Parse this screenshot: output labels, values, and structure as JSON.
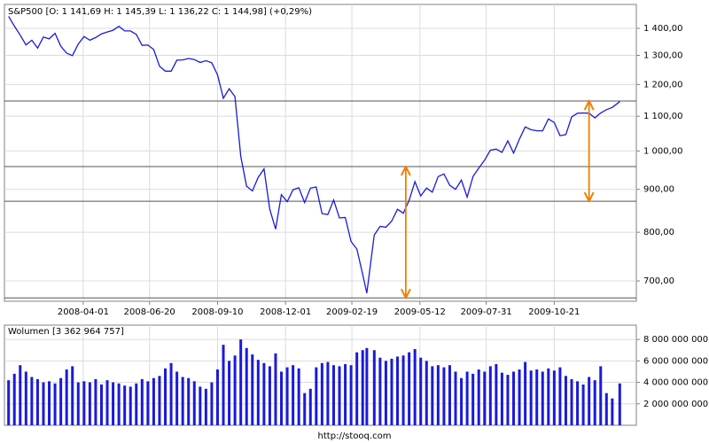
{
  "header": "S&P500 [O: 1 141,69  H: 1 145,39  L: 1 136,22  C: 1 144,98] (+0,29%)",
  "footer": "http://stooq.com",
  "chart_data": [
    {
      "type": "line",
      "log_scale": true,
      "grid": true,
      "color": "#1a1adc",
      "x": [
        "2008-01-02",
        "2008-01-09",
        "2008-01-16",
        "2008-01-23",
        "2008-01-30",
        "2008-02-06",
        "2008-02-13",
        "2008-02-20",
        "2008-02-27",
        "2008-03-05",
        "2008-03-12",
        "2008-03-19",
        "2008-03-26",
        "2008-04-02",
        "2008-04-09",
        "2008-04-16",
        "2008-04-23",
        "2008-04-30",
        "2008-05-07",
        "2008-05-14",
        "2008-05-21",
        "2008-05-28",
        "2008-06-04",
        "2008-06-11",
        "2008-06-18",
        "2008-06-25",
        "2008-07-02",
        "2008-07-09",
        "2008-07-16",
        "2008-07-23",
        "2008-07-30",
        "2008-08-06",
        "2008-08-13",
        "2008-08-20",
        "2008-08-27",
        "2008-09-03",
        "2008-09-10",
        "2008-09-17",
        "2008-09-24",
        "2008-10-01",
        "2008-10-08",
        "2008-10-15",
        "2008-10-22",
        "2008-10-29",
        "2008-11-05",
        "2008-11-12",
        "2008-11-19",
        "2008-11-26",
        "2008-12-03",
        "2008-12-10",
        "2008-12-17",
        "2008-12-24",
        "2008-12-31",
        "2009-01-07",
        "2009-01-14",
        "2009-01-21",
        "2009-01-28",
        "2009-02-04",
        "2009-02-11",
        "2009-02-18",
        "2009-02-25",
        "2009-03-04",
        "2009-03-09",
        "2009-03-18",
        "2009-03-25",
        "2009-04-01",
        "2009-04-08",
        "2009-04-15",
        "2009-04-22",
        "2009-04-29",
        "2009-05-06",
        "2009-05-13",
        "2009-05-20",
        "2009-05-27",
        "2009-06-03",
        "2009-06-10",
        "2009-06-17",
        "2009-06-24",
        "2009-07-01",
        "2009-07-08",
        "2009-07-15",
        "2009-07-22",
        "2009-07-29",
        "2009-08-05",
        "2009-08-12",
        "2009-08-19",
        "2009-08-26",
        "2009-09-02",
        "2009-09-09",
        "2009-09-16",
        "2009-09-23",
        "2009-09-30",
        "2009-10-07",
        "2009-10-14",
        "2009-10-21",
        "2009-10-28",
        "2009-11-04",
        "2009-11-11",
        "2009-11-18",
        "2009-11-25",
        "2009-12-02",
        "2009-12-09",
        "2009-12-16",
        "2009-12-23",
        "2009-12-30",
        "2010-01-08"
      ],
      "values": [
        1447,
        1409,
        1374,
        1338,
        1355,
        1326,
        1367,
        1360,
        1381,
        1333,
        1308,
        1299,
        1341,
        1369,
        1355,
        1365,
        1379,
        1386,
        1393,
        1408,
        1390,
        1390,
        1377,
        1336,
        1337,
        1321,
        1262,
        1245,
        1245,
        1283,
        1284,
        1289,
        1285,
        1275,
        1281,
        1274,
        1232,
        1156,
        1186,
        1161,
        985,
        908,
        896,
        930,
        952,
        852,
        807,
        887,
        870,
        899,
        904,
        868,
        903,
        906,
        842,
        840,
        874,
        832,
        833,
        780,
        764,
        713,
        677,
        794,
        813,
        811,
        825,
        852,
        843,
        873,
        919,
        884,
        903,
        893,
        932,
        939,
        910,
        900,
        923,
        881,
        932,
        954,
        975,
        1002,
        1005,
        996,
        1028,
        994,
        1033,
        1068,
        1060,
        1057,
        1057,
        1092,
        1081,
        1043,
        1046,
        1098,
        1109,
        1110,
        1109,
        1095,
        1110,
        1120,
        1127,
        1145
      ],
      "xlim": [
        "2007-12-28",
        "2010-01-28"
      ],
      "xticks": [
        "2008-04-01",
        "2008-06-20",
        "2008-09-10",
        "2008-12-01",
        "2009-02-19",
        "2009-05-12",
        "2009-07-31",
        "2009-10-21"
      ],
      "ylim": [
        662,
        1495
      ],
      "yticks": [
        {
          "value": 700,
          "label": "700,00"
        },
        {
          "value": 800,
          "label": "800,00"
        },
        {
          "value": 900,
          "label": "900,00"
        },
        {
          "value": 1000,
          "label": "1 000,00"
        },
        {
          "value": 1100,
          "label": "1 100,00"
        },
        {
          "value": 1200,
          "label": "1 200,00"
        },
        {
          "value": 1300,
          "label": "1 300,00"
        },
        {
          "value": 1400,
          "label": "1 400,00"
        }
      ],
      "levels": [
        1147,
        958,
        871,
        668
      ],
      "arrows": [
        {
          "x": "2009-04-25",
          "from": 668,
          "to": 958,
          "color": "#f08000"
        },
        {
          "x": "2009-12-02",
          "from": 871,
          "to": 1147,
          "color": "#f08000"
        }
      ]
    },
    {
      "type": "bar",
      "title": "Wolumen [3 362 964 757]",
      "color": "#1a1adc",
      "grid": true,
      "x": [
        "2008-01-02",
        "2008-01-09",
        "2008-01-16",
        "2008-01-23",
        "2008-01-30",
        "2008-02-06",
        "2008-02-13",
        "2008-02-20",
        "2008-02-27",
        "2008-03-05",
        "2008-03-12",
        "2008-03-19",
        "2008-03-26",
        "2008-04-02",
        "2008-04-09",
        "2008-04-16",
        "2008-04-23",
        "2008-04-30",
        "2008-05-07",
        "2008-05-14",
        "2008-05-21",
        "2008-05-28",
        "2008-06-04",
        "2008-06-11",
        "2008-06-18",
        "2008-06-25",
        "2008-07-02",
        "2008-07-09",
        "2008-07-16",
        "2008-07-23",
        "2008-07-30",
        "2008-08-06",
        "2008-08-13",
        "2008-08-20",
        "2008-08-27",
        "2008-09-03",
        "2008-09-10",
        "2008-09-17",
        "2008-09-24",
        "2008-10-01",
        "2008-10-08",
        "2008-10-15",
        "2008-10-22",
        "2008-10-29",
        "2008-11-05",
        "2008-11-12",
        "2008-11-19",
        "2008-11-26",
        "2008-12-03",
        "2008-12-10",
        "2008-12-17",
        "2008-12-24",
        "2008-12-31",
        "2009-01-07",
        "2009-01-14",
        "2009-01-21",
        "2009-01-28",
        "2009-02-04",
        "2009-02-11",
        "2009-02-18",
        "2009-02-25",
        "2009-03-04",
        "2009-03-09",
        "2009-03-18",
        "2009-03-25",
        "2009-04-01",
        "2009-04-08",
        "2009-04-15",
        "2009-04-22",
        "2009-04-29",
        "2009-05-06",
        "2009-05-13",
        "2009-05-20",
        "2009-05-27",
        "2009-06-03",
        "2009-06-10",
        "2009-06-17",
        "2009-06-24",
        "2009-07-01",
        "2009-07-08",
        "2009-07-15",
        "2009-07-22",
        "2009-07-29",
        "2009-08-05",
        "2009-08-12",
        "2009-08-19",
        "2009-08-26",
        "2009-09-02",
        "2009-09-09",
        "2009-09-16",
        "2009-09-23",
        "2009-09-30",
        "2009-10-07",
        "2009-10-14",
        "2009-10-21",
        "2009-10-28",
        "2009-11-04",
        "2009-11-11",
        "2009-11-18",
        "2009-11-25",
        "2009-12-02",
        "2009-12-09",
        "2009-12-16",
        "2009-12-23",
        "2009-12-30",
        "2010-01-08"
      ],
      "values": [
        4200000000,
        4800000000,
        5600000000,
        5000000000,
        4500000000,
        4300000000,
        4000000000,
        4100000000,
        3900000000,
        4400000000,
        5200000000,
        5500000000,
        4000000000,
        4100000000,
        4000000000,
        4300000000,
        3800000000,
        4200000000,
        4000000000,
        3900000000,
        3700000000,
        3600000000,
        3900000000,
        4300000000,
        4100000000,
        4400000000,
        4600000000,
        5300000000,
        5800000000,
        5000000000,
        4500000000,
        4400000000,
        4100000000,
        3600000000,
        3400000000,
        4000000000,
        5200000000,
        7500000000,
        6000000000,
        6500000000,
        8000000000,
        7200000000,
        6600000000,
        6100000000,
        5800000000,
        5500000000,
        6700000000,
        5000000000,
        5400000000,
        5600000000,
        5300000000,
        3000000000,
        3400000000,
        5400000000,
        5800000000,
        5900000000,
        5600000000,
        5500000000,
        5700000000,
        5600000000,
        6800000000,
        7000000000,
        7200000000,
        7000000000,
        6300000000,
        6000000000,
        6200000000,
        6400000000,
        6500000000,
        6800000000,
        7100000000,
        6300000000,
        6000000000,
        5500000000,
        5600000000,
        5400000000,
        5600000000,
        5000000000,
        4400000000,
        5000000000,
        4800000000,
        5200000000,
        5000000000,
        5500000000,
        5700000000,
        4900000000,
        4700000000,
        5000000000,
        5200000000,
        5900000000,
        5100000000,
        5200000000,
        5000000000,
        5300000000,
        5100000000,
        5400000000,
        4600000000,
        4300000000,
        4100000000,
        3800000000,
        4500000000,
        4200000000,
        5500000000,
        3000000000,
        2500000000,
        3900000000
      ],
      "xlim": [
        "2007-12-28",
        "2010-01-28"
      ],
      "ylim": [
        0,
        9330000000
      ],
      "yticks": [
        {
          "value": 2000000000,
          "label": "2 000 000 000"
        },
        {
          "value": 4000000000,
          "label": "4 000 000 000"
        },
        {
          "value": 6000000000,
          "label": "6 000 000 000"
        },
        {
          "value": 8000000000,
          "label": "8 000 000 000"
        }
      ]
    }
  ]
}
